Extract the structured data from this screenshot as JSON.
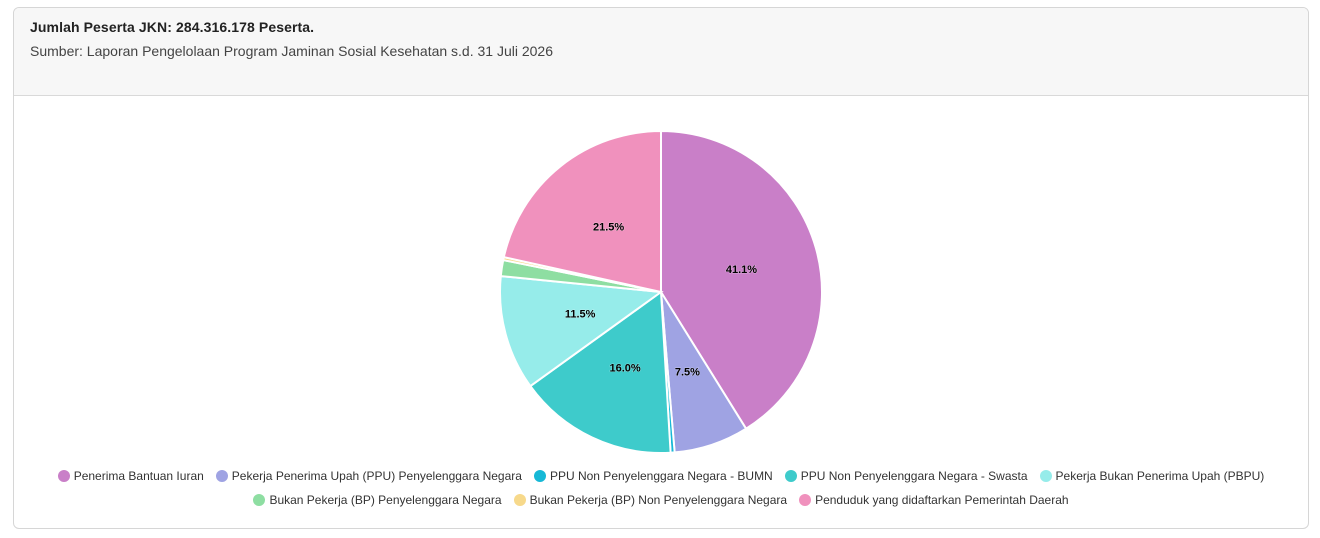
{
  "header": {
    "title": "Jumlah Peserta JKN: 284.316.178 Peserta.",
    "subtitle": "Sumber: Laporan Pengelolaan Program Jaminan Sosial Kesehatan s.d. 31 Juli 2026"
  },
  "chart_data": {
    "type": "pie",
    "title": "",
    "legend_position": "bottom",
    "slices": [
      {
        "name": "Penerima Bantuan Iuran",
        "value": 41.1,
        "label": "41.1%",
        "color": "#c97fc8"
      },
      {
        "name": "Pekerja Penerima Upah (PPU) Penyelenggara Negara",
        "value": 7.5,
        "label": "7.5%",
        "color": "#9fa3e3"
      },
      {
        "name": "PPU Non Penyelenggara Negara - BUMN",
        "value": 0.4,
        "label": "",
        "color": "#16b8d6"
      },
      {
        "name": "PPU Non Penyelenggara Negara - Swasta",
        "value": 16.0,
        "label": "16.0%",
        "color": "#3ecbcb"
      },
      {
        "name": "Pekerja Bukan Penerima Upah (PBPU)",
        "value": 11.5,
        "label": "11.5%",
        "color": "#96ecea"
      },
      {
        "name": "Bukan Pekerja (BP) Penyelenggara Negara",
        "value": 1.6,
        "label": "",
        "color": "#8edea2"
      },
      {
        "name": "Bukan Pekerja (BP) Non Penyelenggara Negara",
        "value": 0.3,
        "label": "",
        "color": "#f7d98b"
      },
      {
        "name": "Penduduk yang didaftarkan Pemerintah Daerah",
        "value": 21.5,
        "label": "21.5%",
        "color": "#f091bd"
      }
    ]
  }
}
